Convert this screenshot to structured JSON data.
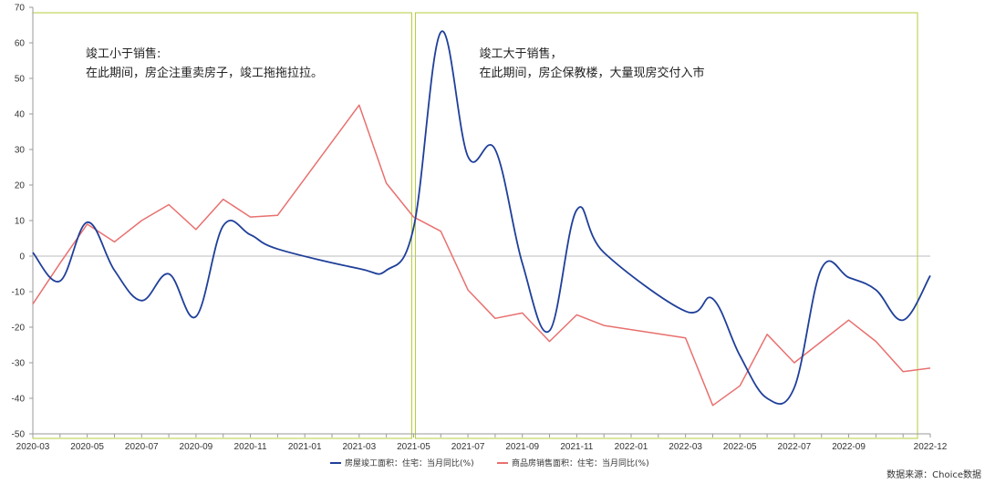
{
  "chart_data": {
    "type": "line",
    "ylim": [
      -50,
      70
    ],
    "yticks": [
      -50,
      -40,
      -30,
      -20,
      -10,
      0,
      10,
      20,
      30,
      40,
      50,
      60,
      70
    ],
    "xlim": [
      "2020-03",
      "2022-12"
    ],
    "x_tick_labels": [
      "2020-03",
      "2020-05",
      "2020-07",
      "2020-09",
      "2020-11",
      "2021-01",
      "2021-03",
      "2021-05",
      "2021-07",
      "2021-09",
      "2021-11",
      "2022-01",
      "2022-03",
      "2022-05",
      "2022-07",
      "2022-09",
      "2022-12"
    ],
    "series": [
      {
        "name": "房屋竣工面积：住宅：当月同比(%)",
        "color": "#1f3f9a",
        "smooth": true,
        "points": [
          [
            "2020-03",
            1
          ],
          [
            "2020-04",
            -7
          ],
          [
            "2020-05",
            9.5
          ],
          [
            "2020-06",
            -4
          ],
          [
            "2020-07",
            -12.5
          ],
          [
            "2020-08",
            -5
          ],
          [
            "2020-09",
            -17
          ],
          [
            "2020-10",
            8.5
          ],
          [
            "2020-11",
            6
          ],
          [
            "2020-12",
            2
          ],
          [
            "2021-03",
            -3.5
          ],
          [
            "2021-04",
            -4
          ],
          [
            "2021-05",
            8
          ],
          [
            "2021-06",
            63
          ],
          [
            "2021-07",
            28
          ],
          [
            "2021-08",
            30
          ],
          [
            "2021-09",
            -2
          ],
          [
            "2021-10",
            -21
          ],
          [
            "2021-11",
            13
          ],
          [
            "2021-12",
            1
          ],
          [
            "2022-03",
            -15.5
          ],
          [
            "2022-04",
            -12
          ],
          [
            "2022-05",
            -28
          ],
          [
            "2022-06",
            -40
          ],
          [
            "2022-07",
            -37
          ],
          [
            "2022-08",
            -3.5
          ],
          [
            "2022-09",
            -6
          ],
          [
            "2022-10",
            -9.5
          ],
          [
            "2022-11",
            -18
          ],
          [
            "2022-12",
            -5.5
          ]
        ]
      },
      {
        "name": "商品房销售面积：住宅：当月同比(%)",
        "color": "#e8706f",
        "smooth": false,
        "points": [
          [
            "2020-03",
            -13.5
          ],
          [
            "2020-04",
            -2
          ],
          [
            "2020-05",
            9
          ],
          [
            "2020-06",
            4
          ],
          [
            "2020-07",
            10
          ],
          [
            "2020-08",
            14.5
          ],
          [
            "2020-09",
            7.5
          ],
          [
            "2020-10",
            16
          ],
          [
            "2020-11",
            11
          ],
          [
            "2020-12",
            11.5
          ],
          [
            "2021-03",
            42.5
          ],
          [
            "2021-04",
            20.5
          ],
          [
            "2021-05",
            11
          ],
          [
            "2021-06",
            7
          ],
          [
            "2021-07",
            -9.5
          ],
          [
            "2021-08",
            -17.5
          ],
          [
            "2021-09",
            -16
          ],
          [
            "2021-10",
            -24
          ],
          [
            "2021-11",
            -16.5
          ],
          [
            "2021-12",
            -19.5
          ],
          [
            "2022-03",
            -23
          ],
          [
            "2022-04",
            -42
          ],
          [
            "2022-05",
            -36.5
          ],
          [
            "2022-06",
            -22
          ],
          [
            "2022-07",
            -30
          ],
          [
            "2022-08",
            -24
          ],
          [
            "2022-09",
            -18
          ],
          [
            "2022-10",
            -24
          ],
          [
            "2022-11",
            -32.5
          ],
          [
            "2022-12",
            -31.5
          ]
        ]
      }
    ],
    "annotations": [
      {
        "box": [
          "2020-03",
          "2021-05"
        ],
        "border_color": "#b5cc3c",
        "lines": [
          "竣工小于销售:",
          "在此期间，房企注重卖房子，竣工拖拖拉拉。"
        ]
      },
      {
        "box": [
          "2021-05",
          "2022-12"
        ],
        "border_color": "#b5cc3c",
        "lines": [
          "竣工大于销售，",
          "在此期间，房企保教楼，大量现房交付入市"
        ]
      }
    ],
    "legend_position": "bottom-center",
    "grid": false,
    "source": "数据来源：Choice数据"
  }
}
